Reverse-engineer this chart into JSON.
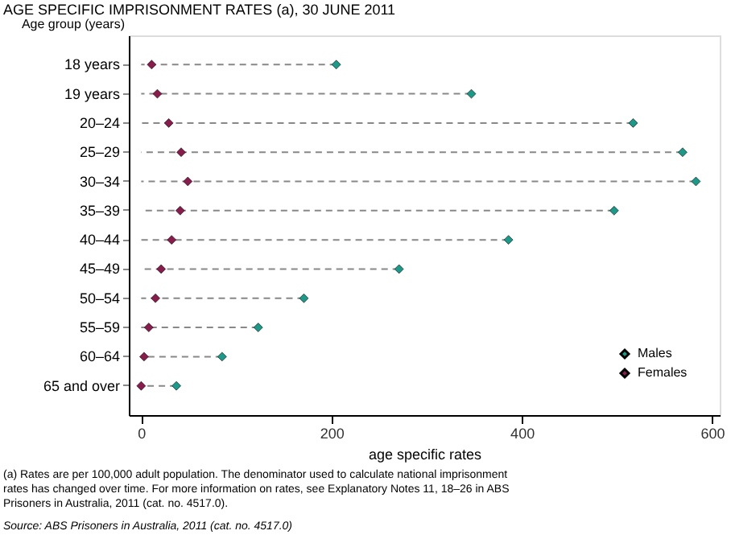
{
  "chart_data": {
    "type": "scatter",
    "orientation": "horizontal",
    "title": "AGE SPECIFIC IMPRISONMENT RATES (a), 30 JUNE 2011",
    "ylabel": "Age group (years)",
    "xlabel": "age specific rates",
    "categories": [
      "18 years",
      "19 years",
      "20–24",
      "25–29",
      "30–34",
      "35–39",
      "40–44",
      "45–49",
      "50–54",
      "55–59",
      "60–64",
      "65 and over"
    ],
    "series": [
      {
        "name": "Males",
        "type": "lollipop",
        "line_style": "dashed",
        "color": "#1a9a88",
        "values": [
          205,
          347,
          517,
          569,
          583,
          497,
          386,
          271,
          171,
          123,
          85,
          37
        ]
      },
      {
        "name": "Females",
        "color": "#8a1c4c",
        "values": [
          11,
          17,
          29,
          42,
          49,
          41,
          32,
          21,
          15,
          8,
          3,
          0
        ]
      }
    ],
    "xlim": [
      -13,
      608
    ],
    "xticks": [
      0,
      200,
      400,
      600
    ],
    "marker": "diamond",
    "grid": false,
    "legend": "bottom right",
    "annotations": [
      "(a) Rates are per 100,000 adult population. The denominator used to calculate national imprisonment rates has changed over time. For more information on rates, see Explanatory Notes 11, 18–26 in ABS Prisoners in Australia, 2011 (cat. no. 4517.0).",
      "Source: ABS Prisoners in Australia, 2011 (cat. no. 4517.0)"
    ]
  }
}
